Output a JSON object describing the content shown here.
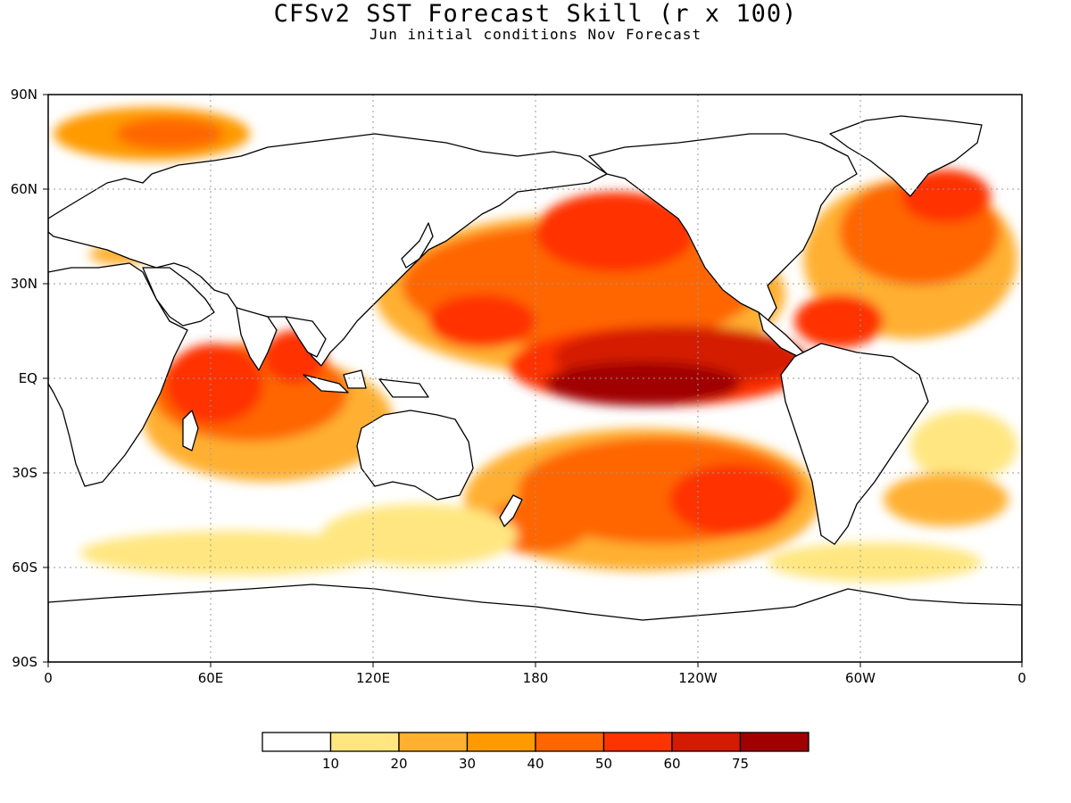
{
  "title": "CFSv2 SST Forecast Skill (r x 100)",
  "subtitle": "Jun initial conditions  Nov Forecast",
  "map": {
    "lon_ticks": [
      "0",
      "60E",
      "120E",
      "180",
      "120W",
      "60W",
      "0"
    ],
    "lat_ticks": [
      "90N",
      "60N",
      "30N",
      "EQ",
      "30S",
      "60S",
      "90S"
    ],
    "grid": true,
    "skill_field_description": null
  },
  "colors": {
    "land": "#ffffff",
    "coast": "#000000",
    "levels": [
      "#ffffff",
      "#ffe680",
      "#ffb030",
      "#ff9a00",
      "#ff6600",
      "#ff3300",
      "#d41a00",
      "#a00000"
    ]
  },
  "legend": {
    "labels": [
      "10",
      "20",
      "30",
      "40",
      "50",
      "60",
      "75"
    ],
    "colors": [
      "#ffffff",
      "#ffe680",
      "#ffb030",
      "#ff9a00",
      "#ff6600",
      "#ff3300",
      "#d41a00",
      "#a00000"
    ]
  }
}
